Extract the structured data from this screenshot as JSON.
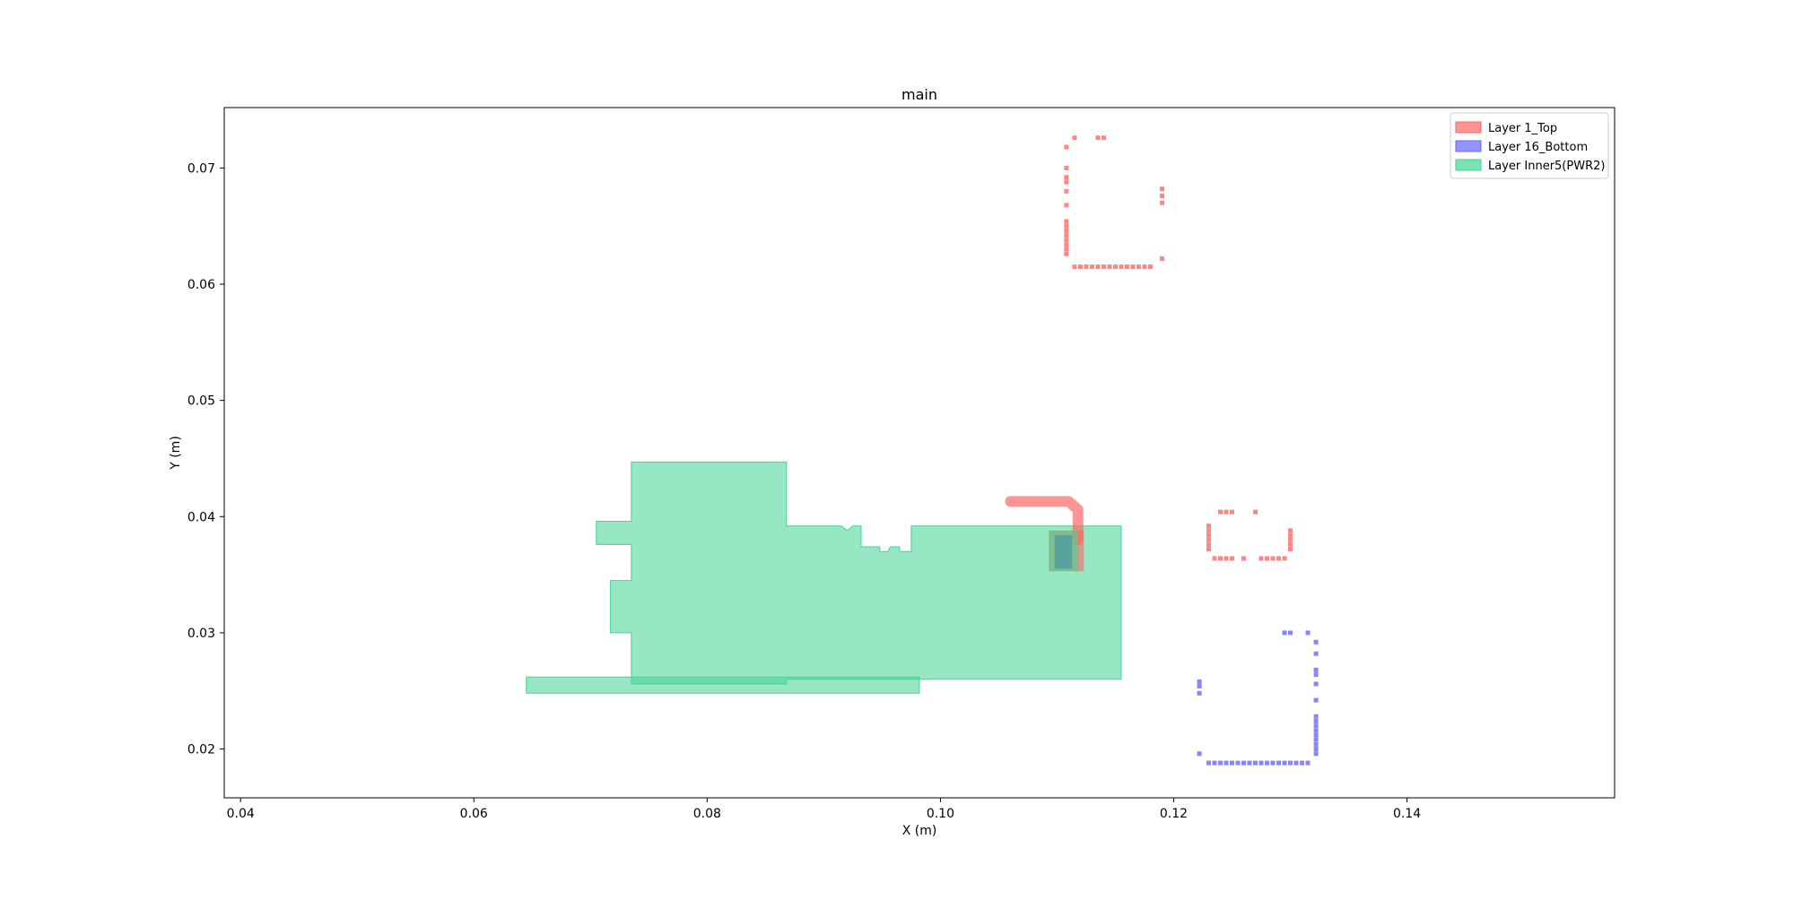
{
  "chart_data": {
    "type": "scatter",
    "title": "main",
    "xlabel": "X (m)",
    "ylabel": "Y (m)",
    "xlim": [
      0.0386,
      0.1578
    ],
    "ylim": [
      0.0158,
      0.0752
    ],
    "xticks": [
      0.04,
      0.06,
      0.08,
      0.1,
      0.12,
      0.14
    ],
    "yticks": [
      0.02,
      0.03,
      0.04,
      0.05,
      0.06,
      0.07
    ],
    "xtick_labels": [
      "0.04",
      "0.06",
      "0.08",
      "0.10",
      "0.12",
      "0.14"
    ],
    "ytick_labels": [
      "0.02",
      "0.03",
      "0.04",
      "0.05",
      "0.06",
      "0.07"
    ],
    "grid": false,
    "legend_placement": "top-right",
    "series": [
      {
        "name": "Layer 1_Top",
        "color": "#ff6666",
        "points": [
          [
            0.1115,
            0.0726
          ],
          [
            0.1135,
            0.0726
          ],
          [
            0.114,
            0.0726
          ],
          [
            0.1108,
            0.0718
          ],
          [
            0.1108,
            0.07
          ],
          [
            0.1108,
            0.0692
          ],
          [
            0.1108,
            0.0688
          ],
          [
            0.1108,
            0.068
          ],
          [
            0.1108,
            0.0668
          ],
          [
            0.1108,
            0.0654
          ],
          [
            0.1108,
            0.065
          ],
          [
            0.1108,
            0.0646
          ],
          [
            0.1108,
            0.0642
          ],
          [
            0.1108,
            0.0638
          ],
          [
            0.1108,
            0.0634
          ],
          [
            0.1108,
            0.063
          ],
          [
            0.1108,
            0.0626
          ],
          [
            0.1115,
            0.0615
          ],
          [
            0.112,
            0.0615
          ],
          [
            0.1125,
            0.0615
          ],
          [
            0.113,
            0.0615
          ],
          [
            0.1135,
            0.0615
          ],
          [
            0.114,
            0.0615
          ],
          [
            0.1145,
            0.0615
          ],
          [
            0.115,
            0.0615
          ],
          [
            0.1155,
            0.0615
          ],
          [
            0.116,
            0.0615
          ],
          [
            0.1165,
            0.0615
          ],
          [
            0.117,
            0.0615
          ],
          [
            0.1175,
            0.0615
          ],
          [
            0.118,
            0.0615
          ],
          [
            0.119,
            0.0622
          ],
          [
            0.119,
            0.067
          ],
          [
            0.119,
            0.0676
          ],
          [
            0.119,
            0.0682
          ],
          [
            0.124,
            0.0404
          ],
          [
            0.1245,
            0.0404
          ],
          [
            0.125,
            0.0404
          ],
          [
            0.127,
            0.0404
          ],
          [
            0.123,
            0.0392
          ],
          [
            0.123,
            0.0388
          ],
          [
            0.123,
            0.0384
          ],
          [
            0.123,
            0.038
          ],
          [
            0.123,
            0.0376
          ],
          [
            0.123,
            0.0372
          ],
          [
            0.1235,
            0.0364
          ],
          [
            0.124,
            0.0364
          ],
          [
            0.1245,
            0.0364
          ],
          [
            0.125,
            0.0364
          ],
          [
            0.126,
            0.0364
          ],
          [
            0.1275,
            0.0364
          ],
          [
            0.128,
            0.0364
          ],
          [
            0.1285,
            0.0364
          ],
          [
            0.129,
            0.0364
          ],
          [
            0.1295,
            0.0364
          ],
          [
            0.13,
            0.0372
          ],
          [
            0.13,
            0.0376
          ],
          [
            0.13,
            0.038
          ],
          [
            0.13,
            0.0384
          ],
          [
            0.13,
            0.0388
          ]
        ]
      },
      {
        "name": "Layer 16_Bottom",
        "color": "#6666ff",
        "points": [
          [
            0.1295,
            0.03
          ],
          [
            0.13,
            0.03
          ],
          [
            0.1315,
            0.03
          ],
          [
            0.1322,
            0.0292
          ],
          [
            0.1322,
            0.0282
          ],
          [
            0.1322,
            0.0268
          ],
          [
            0.1322,
            0.0264
          ],
          [
            0.1322,
            0.0256
          ],
          [
            0.1322,
            0.0242
          ],
          [
            0.1322,
            0.0228
          ],
          [
            0.1322,
            0.0224
          ],
          [
            0.1322,
            0.022
          ],
          [
            0.1322,
            0.0216
          ],
          [
            0.1322,
            0.0212
          ],
          [
            0.1322,
            0.0208
          ],
          [
            0.1322,
            0.0204
          ],
          [
            0.1322,
            0.02
          ],
          [
            0.1322,
            0.0196
          ],
          [
            0.1222,
            0.0258
          ],
          [
            0.1222,
            0.0254
          ],
          [
            0.1222,
            0.0248
          ],
          [
            0.1222,
            0.0196
          ],
          [
            0.123,
            0.0188
          ],
          [
            0.1235,
            0.0188
          ],
          [
            0.124,
            0.0188
          ],
          [
            0.1245,
            0.0188
          ],
          [
            0.125,
            0.0188
          ],
          [
            0.1255,
            0.0188
          ],
          [
            0.126,
            0.0188
          ],
          [
            0.1265,
            0.0188
          ],
          [
            0.127,
            0.0188
          ],
          [
            0.1275,
            0.0188
          ],
          [
            0.128,
            0.0188
          ],
          [
            0.1285,
            0.0188
          ],
          [
            0.129,
            0.0188
          ],
          [
            0.1295,
            0.0188
          ],
          [
            0.13,
            0.0188
          ],
          [
            0.1305,
            0.0188
          ],
          [
            0.131,
            0.0188
          ],
          [
            0.1315,
            0.0188
          ]
        ]
      },
      {
        "name": "Layer Inner5(PWR2)",
        "color": "#44d494",
        "polygons": [
          [
            [
              0.0735,
              0.0447
            ],
            [
              0.0868,
              0.0447
            ],
            [
              0.0868,
              0.0392
            ],
            [
              0.0897,
              0.0392
            ],
            [
              0.0897,
              0.0392
            ],
            [
              0.0915,
              0.0392
            ],
            [
              0.092,
              0.0388
            ],
            [
              0.0925,
              0.0392
            ],
            [
              0.0932,
              0.0392
            ],
            [
              0.0932,
              0.0374
            ],
            [
              0.0948,
              0.0374
            ],
            [
              0.0948,
              0.037
            ],
            [
              0.0955,
              0.037
            ],
            [
              0.0957,
              0.0374
            ],
            [
              0.0965,
              0.0374
            ],
            [
              0.0965,
              0.037
            ],
            [
              0.0975,
              0.037
            ],
            [
              0.0975,
              0.0392
            ],
            [
              0.1155,
              0.0392
            ],
            [
              0.1155,
              0.026
            ],
            [
              0.0868,
              0.026
            ],
            [
              0.0868,
              0.0256
            ],
            [
              0.0868,
              0.0256
            ],
            [
              0.0735,
              0.0256
            ],
            [
              0.0735,
              0.03
            ],
            [
              0.0717,
              0.03
            ],
            [
              0.0717,
              0.0345
            ],
            [
              0.0735,
              0.0345
            ],
            [
              0.0735,
              0.0376
            ],
            [
              0.0705,
              0.0376
            ],
            [
              0.0705,
              0.0396
            ],
            [
              0.0735,
              0.0396
            ]
          ],
          [
            [
              0.0645,
              0.0262
            ],
            [
              0.0982,
              0.0262
            ],
            [
              0.0982,
              0.0248
            ],
            [
              0.0645,
              0.0248
            ]
          ]
        ]
      }
    ],
    "overlays": [
      {
        "layer": "Layer 1_Top",
        "kind": "trace",
        "color": "#ff6666",
        "points": [
          [
            0.106,
            0.0413
          ],
          [
            0.111,
            0.0413
          ],
          [
            0.1118,
            0.0406
          ],
          [
            0.1118,
            0.038
          ]
        ]
      },
      {
        "layer": "Layer 1_Top",
        "kind": "pad",
        "color": "#ff6666",
        "box": [
          0.1093,
          0.0353,
          0.1123,
          0.0388
        ]
      },
      {
        "layer": "Layer 16_Bottom",
        "kind": "pad",
        "color": "#3333bb",
        "box": [
          0.1098,
          0.0355,
          0.1113,
          0.0384
        ]
      },
      {
        "layer": "Layer Inner5(PWR2)",
        "kind": "pad",
        "color": "#44d494",
        "box": [
          0.1093,
          0.0353,
          0.1118,
          0.0388
        ]
      }
    ]
  }
}
